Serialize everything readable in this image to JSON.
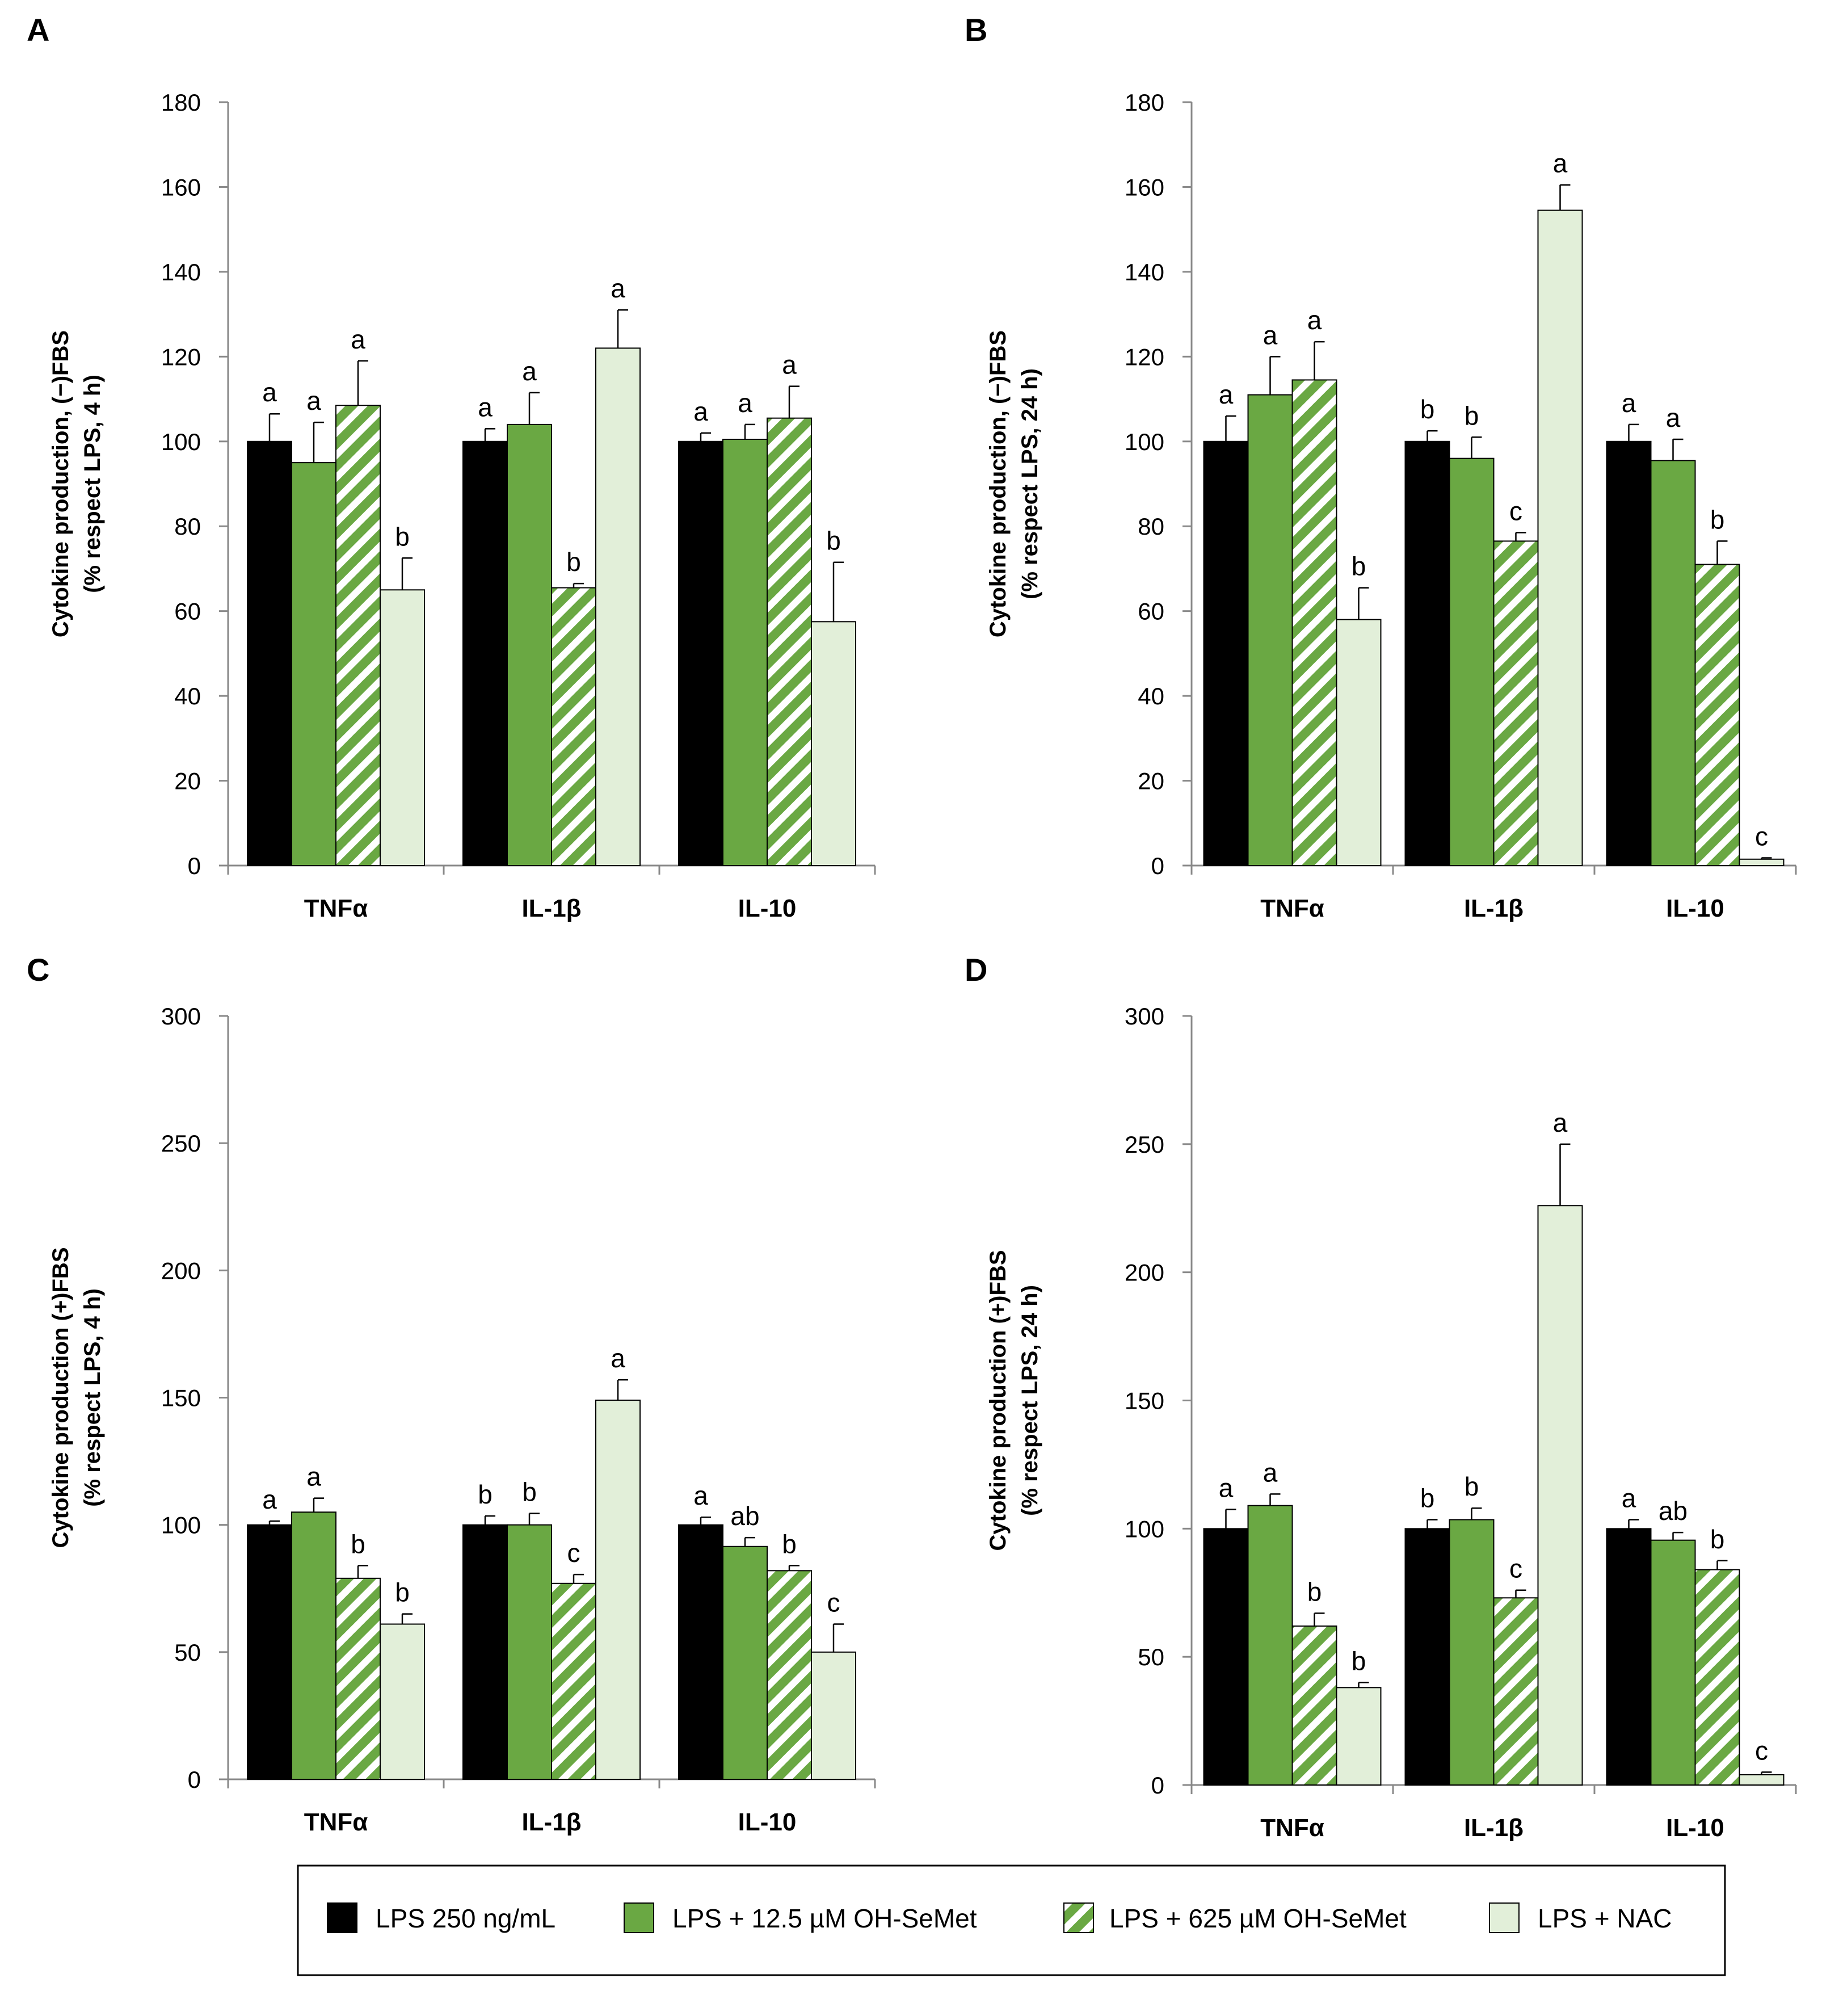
{
  "legend": {
    "items": [
      {
        "label": "LPS 250 ng/mL",
        "style": "black"
      },
      {
        "label": "LPS + 12.5 µM OH-SeMet",
        "style": "green"
      },
      {
        "label": "LPS + 625 µM OH-SeMet",
        "style": "hatch"
      },
      {
        "label": "LPS + NAC",
        "style": "light"
      }
    ]
  },
  "colors": {
    "black": "#000000",
    "green": "#6aa843",
    "light": "#e2efd9",
    "hatch_stripe": "#6aa843",
    "hatch_bg": "#ffffff"
  },
  "chart_data": [
    {
      "panel": "A",
      "type": "bar",
      "categories": [
        "TNFα",
        "IL-1β",
        "IL-10"
      ],
      "ylabel_line1": "Cytokine production, (−)FBS",
      "ylabel_line2": "(% respect LPS, 4 h)",
      "ylim": [
        0,
        180
      ],
      "yticks": [
        0,
        20,
        40,
        60,
        80,
        100,
        120,
        140,
        160,
        180
      ],
      "series": [
        {
          "name": "LPS 250 ng/mL",
          "values": [
            100,
            100,
            100
          ],
          "errors": [
            6.5,
            3,
            2
          ],
          "labels": [
            "a",
            "a",
            "a"
          ]
        },
        {
          "name": "LPS + 12.5 µM OH-SeMet",
          "values": [
            95,
            104,
            100.5
          ],
          "errors": [
            9.5,
            7.5,
            3.5
          ],
          "labels": [
            "a",
            "a",
            "a"
          ]
        },
        {
          "name": "LPS + 625 µM OH-SeMet",
          "values": [
            108.5,
            65.5,
            105.5
          ],
          "errors": [
            10.5,
            1,
            7.5
          ],
          "labels": [
            "a",
            "b",
            "a"
          ]
        },
        {
          "name": "LPS + NAC",
          "values": [
            65,
            122,
            57.5
          ],
          "errors": [
            7.5,
            9,
            14
          ],
          "labels": [
            "b",
            "a",
            "b"
          ]
        }
      ]
    },
    {
      "panel": "B",
      "type": "bar",
      "categories": [
        "TNFα",
        "IL-1β",
        "IL-10"
      ],
      "ylabel_line1": "Cytokine production, (−)FBS",
      "ylabel_line2": "(% respect LPS, 24 h)",
      "ylim": [
        0,
        180
      ],
      "yticks": [
        0,
        20,
        40,
        60,
        80,
        100,
        120,
        140,
        160,
        180
      ],
      "series": [
        {
          "name": "LPS 250 ng/mL",
          "values": [
            100,
            100,
            100
          ],
          "errors": [
            6,
            2.5,
            4
          ],
          "labels": [
            "a",
            "b",
            "a"
          ]
        },
        {
          "name": "LPS + 12.5 µM OH-SeMet",
          "values": [
            111,
            96,
            95.5
          ],
          "errors": [
            9,
            5,
            5
          ],
          "labels": [
            "a",
            "b",
            "a"
          ]
        },
        {
          "name": "LPS + 625 µM OH-SeMet",
          "values": [
            114.5,
            76.5,
            71
          ],
          "errors": [
            9,
            2,
            5.5
          ],
          "labels": [
            "a",
            "c",
            "b"
          ]
        },
        {
          "name": "LPS + NAC",
          "values": [
            58,
            154.5,
            1.5
          ],
          "errors": [
            7.5,
            6,
            0.3
          ],
          "labels": [
            "b",
            "a",
            "c"
          ]
        }
      ]
    },
    {
      "panel": "C",
      "type": "bar",
      "categories": [
        "TNFα",
        "IL-1β",
        "IL-10"
      ],
      "ylabel_line1": "Cytokine production (+)FBS",
      "ylabel_line2": "(% respect LPS, 4 h)",
      "ylim": [
        0,
        300
      ],
      "yticks": [
        0,
        50,
        100,
        150,
        200,
        250,
        300
      ],
      "series": [
        {
          "name": "LPS 250 ng/mL",
          "values": [
            100,
            100,
            100
          ],
          "errors": [
            1.5,
            3.5,
            3
          ],
          "labels": [
            "a",
            "b",
            "a"
          ]
        },
        {
          "name": "LPS + 12.5 µM OH-SeMet",
          "values": [
            105,
            100,
            91.5
          ],
          "errors": [
            5.5,
            4.5,
            3.5
          ],
          "labels": [
            "a",
            "b",
            "ab"
          ]
        },
        {
          "name": "LPS + 625 µM OH-SeMet",
          "values": [
            79,
            77,
            82
          ],
          "errors": [
            5,
            3.5,
            2
          ],
          "labels": [
            "b",
            "c",
            "b"
          ]
        },
        {
          "name": "LPS + NAC",
          "values": [
            61,
            149,
            50
          ],
          "errors": [
            4,
            8,
            11
          ],
          "labels": [
            "b",
            "a",
            "c"
          ]
        }
      ]
    },
    {
      "panel": "D",
      "type": "bar",
      "categories": [
        "TNFα",
        "IL-1β",
        "IL-10"
      ],
      "ylabel_line1": "Cytokine production (+)FBS",
      "ylabel_line2": "(% respect LPS, 24 h)",
      "ylim": [
        0,
        300
      ],
      "yticks": [
        0,
        50,
        100,
        150,
        200,
        250,
        300
      ],
      "series": [
        {
          "name": "LPS 250 ng/mL",
          "values": [
            100,
            100,
            100
          ],
          "errors": [
            7.5,
            3.5,
            3.5
          ],
          "labels": [
            "a",
            "b",
            "a"
          ]
        },
        {
          "name": "LPS + 12.5 µM OH-SeMet",
          "values": [
            109,
            103.5,
            95.5
          ],
          "errors": [
            4.5,
            4.5,
            3
          ],
          "labels": [
            "a",
            "b",
            "ab"
          ]
        },
        {
          "name": "LPS + 625 µM OH-SeMet",
          "values": [
            62,
            73,
            84
          ],
          "errors": [
            5,
            3,
            3.5
          ],
          "labels": [
            "b",
            "c",
            "b"
          ]
        },
        {
          "name": "LPS + NAC",
          "values": [
            38,
            226,
            4
          ],
          "errors": [
            2,
            24,
            1
          ],
          "labels": [
            "b",
            "a",
            "c"
          ]
        }
      ]
    }
  ]
}
